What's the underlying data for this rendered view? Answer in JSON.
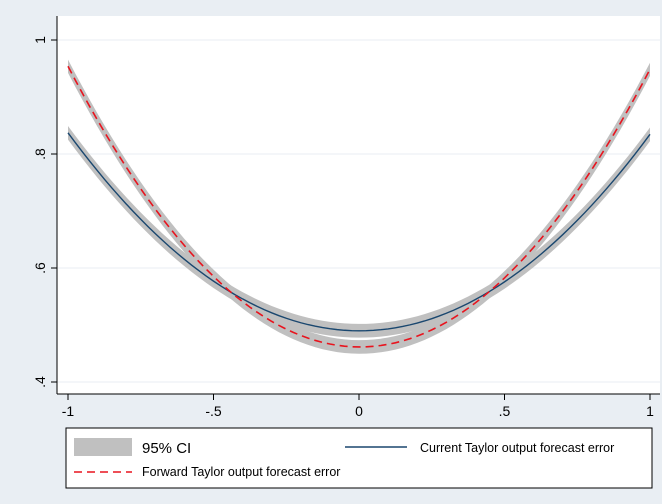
{
  "chart_data": {
    "type": "line",
    "title": "",
    "xlabel": "",
    "ylabel": "",
    "xlim": [
      -1,
      1
    ],
    "ylim": [
      0.4,
      1.0
    ],
    "x_ticks": [
      "-1",
      "-.5",
      "0",
      ".5",
      "1"
    ],
    "y_ticks": [
      ".4",
      ".6",
      ".8",
      "1"
    ],
    "grid": true,
    "legend_position": "bottom",
    "series": [
      {
        "name": "Current Taylor output forecast error",
        "color": "#1a476f",
        "style": "solid",
        "x": [
          -1,
          -0.75,
          -0.5,
          -0.25,
          0,
          0.25,
          0.5,
          0.75,
          1
        ],
        "y": [
          0.835,
          0.689,
          0.58,
          0.509,
          0.485,
          0.509,
          0.58,
          0.689,
          0.83
        ],
        "ci_lower": [
          0.82,
          0.681,
          0.572,
          0.494,
          0.469,
          0.494,
          0.572,
          0.681,
          0.815
        ],
        "ci_upper": [
          0.85,
          0.697,
          0.588,
          0.524,
          0.501,
          0.524,
          0.588,
          0.697,
          0.845
        ]
      },
      {
        "name": "Forward Taylor output forecast error",
        "color": "#e8141e",
        "style": "dashed",
        "x": [
          -1,
          -0.75,
          -0.5,
          -0.25,
          0,
          0.25,
          0.5,
          0.75,
          1
        ],
        "y": [
          0.955,
          0.74,
          0.582,
          0.493,
          0.46,
          0.493,
          0.582,
          0.74,
          0.945
        ],
        "ci_lower": [
          0.94,
          0.733,
          0.574,
          0.478,
          0.444,
          0.478,
          0.574,
          0.733,
          0.93
        ],
        "ci_upper": [
          0.97,
          0.747,
          0.59,
          0.508,
          0.476,
          0.508,
          0.59,
          0.747,
          0.96
        ]
      }
    ],
    "legend": {
      "ci_label": "95% CI",
      "current_label": "Current Taylor output forecast error",
      "forward_label": "Forward Taylor output forecast error"
    },
    "colors": {
      "background": "#e9eef3",
      "plot_background": "#ffffff",
      "grid": "#e9eef3",
      "ci_band": "#c0c0c0"
    }
  }
}
